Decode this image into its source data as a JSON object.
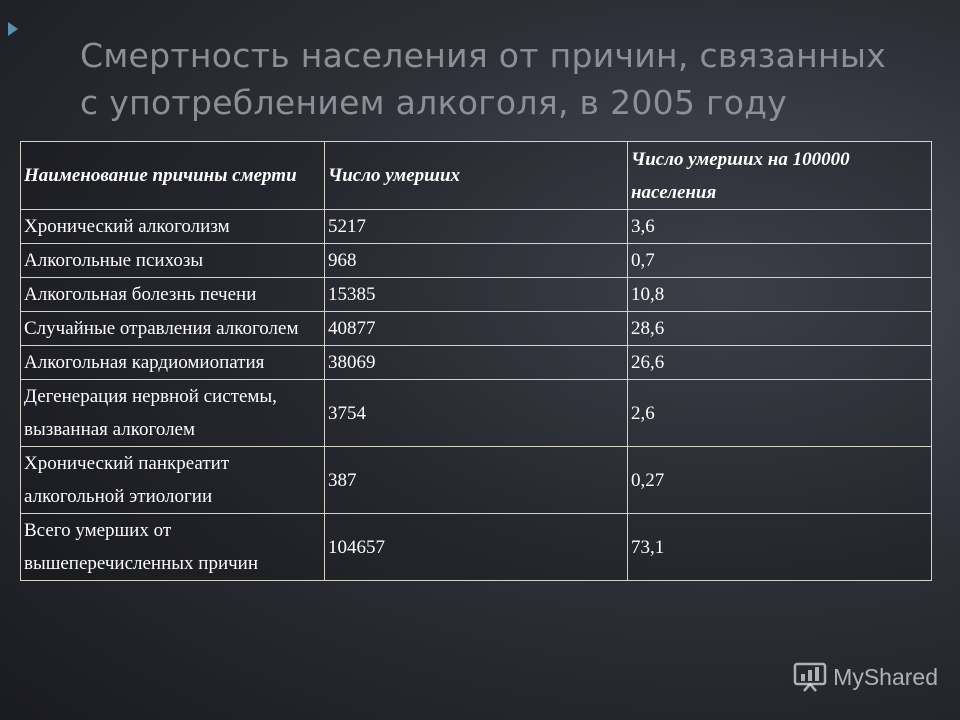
{
  "title": {
    "line1": "Смертность населения от причин, связанных",
    "line2": "с употреблением алкоголя, в 2005 году"
  },
  "table": {
    "headers": [
      "Наименование причины смерти",
      "Число умерших",
      "Число умерших на 100000 населения"
    ],
    "rows": [
      [
        "Хронический алкоголизм",
        "5217",
        "3,6"
      ],
      [
        "Алкогольные психозы",
        "968",
        "0,7"
      ],
      [
        "Алкогольная болезнь печени",
        "15385",
        "10,8"
      ],
      [
        "Случайные отравления алкоголем",
        "40877",
        "28,6"
      ],
      [
        "Алкогольная кардиомиопатия",
        "38069",
        "26,6"
      ],
      [
        "Дегенерация нервной системы, вызванная алкоголем",
        "3754",
        "2,6"
      ],
      [
        "Хронический панкреатит алкогольной этиологии",
        "387",
        "0,27"
      ],
      [
        "Всего умерших от вышеперечисленных причин",
        "104657",
        "73,1"
      ]
    ]
  },
  "watermark": {
    "text": "MyShared",
    "icon": "myshared-logo-icon"
  },
  "colors": {
    "title": "#8d8f96",
    "table_text": "#ffffff",
    "table_border": "#d5d2c7",
    "accent_arrow": "#5b8fb0"
  }
}
